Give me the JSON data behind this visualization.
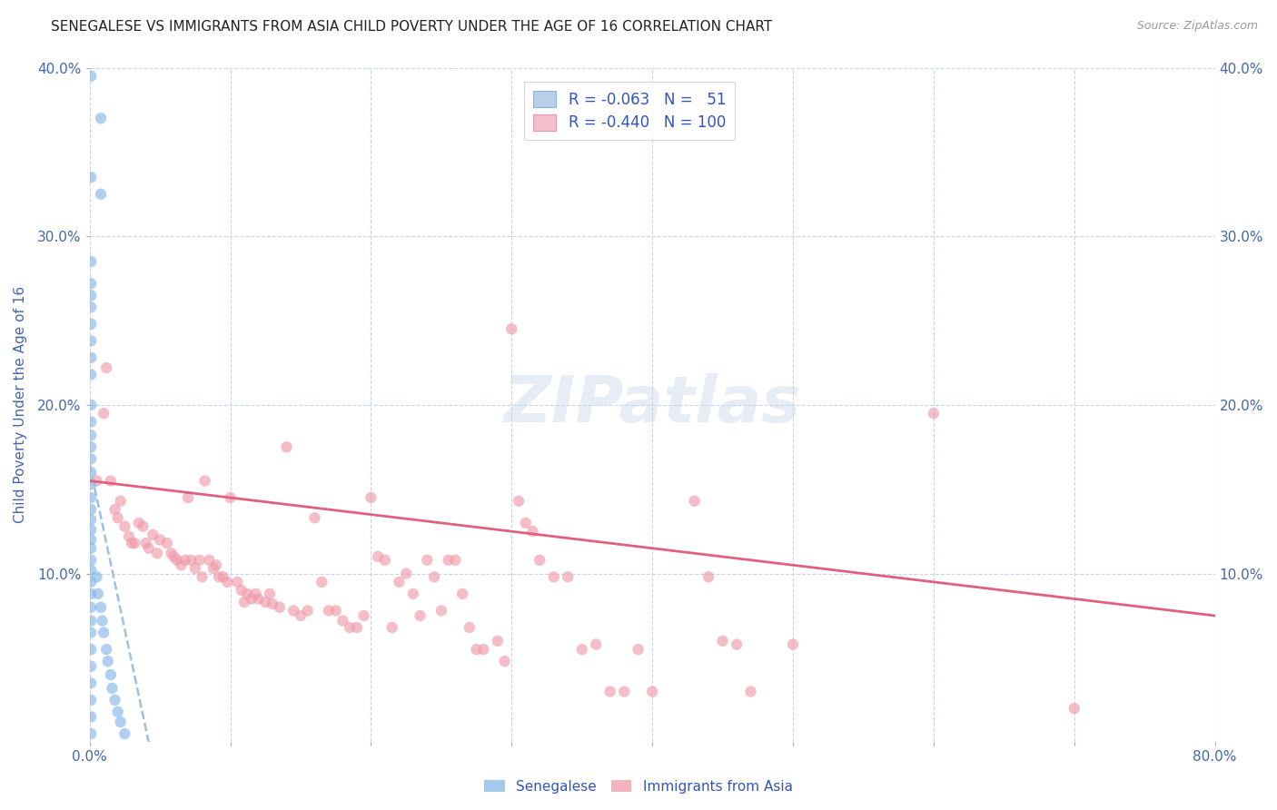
{
  "title": "SENEGALESE VS IMMIGRANTS FROM ASIA CHILD POVERTY UNDER THE AGE OF 16 CORRELATION CHART",
  "source": "Source: ZipAtlas.com",
  "ylabel": "Child Poverty Under the Age of 16",
  "xlabel": "",
  "xlim": [
    0,
    0.8
  ],
  "ylim": [
    0,
    0.4
  ],
  "xticks": [
    0.0,
    0.1,
    0.2,
    0.3,
    0.4,
    0.5,
    0.6,
    0.7,
    0.8
  ],
  "xtick_labels": [
    "0.0%",
    "",
    "",
    "",
    "",
    "",
    "",
    "",
    "80.0%"
  ],
  "yticks_left": [
    0.1,
    0.2,
    0.3,
    0.4
  ],
  "ytick_labels_left": [
    "10.0%",
    "20.0%",
    "30.0%",
    "40.0%"
  ],
  "yticks_right": [
    0.1,
    0.2,
    0.3,
    0.4
  ],
  "ytick_labels_right": [
    "10.0%",
    "20.0%",
    "30.0%",
    "40.0%"
  ],
  "watermark": "ZIPatlas",
  "legend_entry_blue": "R = -0.063   N =   51",
  "legend_entry_pink": "R = -0.440   N = 100",
  "legend_labels_bottom": [
    "Senegalese",
    "Immigrants from Asia"
  ],
  "senegalese_color": "#85b8e8",
  "immigrants_color": "#f09aaa",
  "trendline_senegalese_color": "#a0c0e0",
  "trendline_immigrants_color": "#e06080",
  "senegalese_points": [
    [
      0.001,
      0.395
    ],
    [
      0.008,
      0.37
    ],
    [
      0.001,
      0.335
    ],
    [
      0.008,
      0.325
    ],
    [
      0.001,
      0.285
    ],
    [
      0.001,
      0.272
    ],
    [
      0.001,
      0.265
    ],
    [
      0.001,
      0.258
    ],
    [
      0.001,
      0.248
    ],
    [
      0.001,
      0.238
    ],
    [
      0.001,
      0.228
    ],
    [
      0.001,
      0.218
    ],
    [
      0.001,
      0.2
    ],
    [
      0.001,
      0.19
    ],
    [
      0.001,
      0.182
    ],
    [
      0.001,
      0.175
    ],
    [
      0.001,
      0.168
    ],
    [
      0.001,
      0.16
    ],
    [
      0.001,
      0.153
    ],
    [
      0.001,
      0.145
    ],
    [
      0.001,
      0.138
    ],
    [
      0.001,
      0.132
    ],
    [
      0.001,
      0.126
    ],
    [
      0.001,
      0.12
    ],
    [
      0.001,
      0.115
    ],
    [
      0.001,
      0.108
    ],
    [
      0.001,
      0.102
    ],
    [
      0.001,
      0.095
    ],
    [
      0.001,
      0.088
    ],
    [
      0.001,
      0.08
    ],
    [
      0.001,
      0.072
    ],
    [
      0.001,
      0.065
    ],
    [
      0.001,
      0.055
    ],
    [
      0.001,
      0.045
    ],
    [
      0.001,
      0.035
    ],
    [
      0.001,
      0.025
    ],
    [
      0.001,
      0.015
    ],
    [
      0.001,
      0.005
    ],
    [
      0.005,
      0.098
    ],
    [
      0.006,
      0.088
    ],
    [
      0.008,
      0.08
    ],
    [
      0.009,
      0.072
    ],
    [
      0.01,
      0.065
    ],
    [
      0.012,
      0.055
    ],
    [
      0.013,
      0.048
    ],
    [
      0.015,
      0.04
    ],
    [
      0.016,
      0.032
    ],
    [
      0.018,
      0.025
    ],
    [
      0.02,
      0.018
    ],
    [
      0.022,
      0.012
    ],
    [
      0.025,
      0.005
    ]
  ],
  "immigrants_points": [
    [
      0.005,
      0.155
    ],
    [
      0.01,
      0.195
    ],
    [
      0.012,
      0.222
    ],
    [
      0.015,
      0.155
    ],
    [
      0.018,
      0.138
    ],
    [
      0.02,
      0.133
    ],
    [
      0.022,
      0.143
    ],
    [
      0.025,
      0.128
    ],
    [
      0.028,
      0.122
    ],
    [
      0.03,
      0.118
    ],
    [
      0.032,
      0.118
    ],
    [
      0.035,
      0.13
    ],
    [
      0.038,
      0.128
    ],
    [
      0.04,
      0.118
    ],
    [
      0.042,
      0.115
    ],
    [
      0.045,
      0.123
    ],
    [
      0.048,
      0.112
    ],
    [
      0.05,
      0.12
    ],
    [
      0.055,
      0.118
    ],
    [
      0.058,
      0.112
    ],
    [
      0.06,
      0.11
    ],
    [
      0.062,
      0.108
    ],
    [
      0.065,
      0.105
    ],
    [
      0.068,
      0.108
    ],
    [
      0.07,
      0.145
    ],
    [
      0.072,
      0.108
    ],
    [
      0.075,
      0.103
    ],
    [
      0.078,
      0.108
    ],
    [
      0.08,
      0.098
    ],
    [
      0.082,
      0.155
    ],
    [
      0.085,
      0.108
    ],
    [
      0.088,
      0.103
    ],
    [
      0.09,
      0.105
    ],
    [
      0.092,
      0.098
    ],
    [
      0.095,
      0.098
    ],
    [
      0.098,
      0.095
    ],
    [
      0.1,
      0.145
    ],
    [
      0.105,
      0.095
    ],
    [
      0.108,
      0.09
    ],
    [
      0.11,
      0.083
    ],
    [
      0.112,
      0.088
    ],
    [
      0.115,
      0.085
    ],
    [
      0.118,
      0.088
    ],
    [
      0.12,
      0.085
    ],
    [
      0.125,
      0.083
    ],
    [
      0.128,
      0.088
    ],
    [
      0.13,
      0.082
    ],
    [
      0.135,
      0.08
    ],
    [
      0.14,
      0.175
    ],
    [
      0.145,
      0.078
    ],
    [
      0.15,
      0.075
    ],
    [
      0.155,
      0.078
    ],
    [
      0.16,
      0.133
    ],
    [
      0.165,
      0.095
    ],
    [
      0.17,
      0.078
    ],
    [
      0.175,
      0.078
    ],
    [
      0.18,
      0.072
    ],
    [
      0.185,
      0.068
    ],
    [
      0.19,
      0.068
    ],
    [
      0.195,
      0.075
    ],
    [
      0.2,
      0.145
    ],
    [
      0.205,
      0.11
    ],
    [
      0.21,
      0.108
    ],
    [
      0.215,
      0.068
    ],
    [
      0.22,
      0.095
    ],
    [
      0.225,
      0.1
    ],
    [
      0.23,
      0.088
    ],
    [
      0.235,
      0.075
    ],
    [
      0.24,
      0.108
    ],
    [
      0.245,
      0.098
    ],
    [
      0.25,
      0.078
    ],
    [
      0.255,
      0.108
    ],
    [
      0.26,
      0.108
    ],
    [
      0.265,
      0.088
    ],
    [
      0.27,
      0.068
    ],
    [
      0.275,
      0.055
    ],
    [
      0.28,
      0.055
    ],
    [
      0.29,
      0.06
    ],
    [
      0.295,
      0.048
    ],
    [
      0.3,
      0.245
    ],
    [
      0.305,
      0.143
    ],
    [
      0.31,
      0.13
    ],
    [
      0.315,
      0.125
    ],
    [
      0.32,
      0.108
    ],
    [
      0.33,
      0.098
    ],
    [
      0.34,
      0.098
    ],
    [
      0.35,
      0.055
    ],
    [
      0.36,
      0.058
    ],
    [
      0.37,
      0.03
    ],
    [
      0.38,
      0.03
    ],
    [
      0.39,
      0.055
    ],
    [
      0.4,
      0.03
    ],
    [
      0.43,
      0.143
    ],
    [
      0.44,
      0.098
    ],
    [
      0.45,
      0.06
    ],
    [
      0.46,
      0.058
    ],
    [
      0.47,
      0.03
    ],
    [
      0.5,
      0.058
    ],
    [
      0.6,
      0.195
    ],
    [
      0.7,
      0.02
    ]
  ],
  "background_color": "#ffffff",
  "grid_color": "#c8d4e8",
  "tick_color": "#4466aa"
}
